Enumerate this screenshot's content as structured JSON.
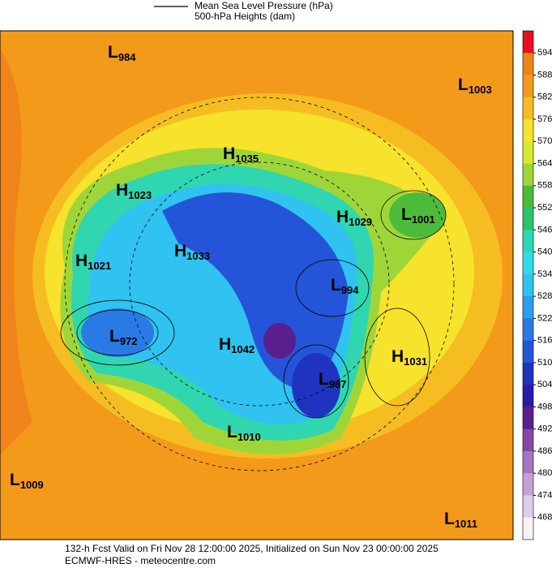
{
  "header": {
    "legend_line": "Mean Sea Level Pressure (hPa)",
    "legend_fill": "500-hPa Heights (dam)"
  },
  "colorbar": {
    "labels": [
      "594",
      "588",
      "582",
      "576",
      "570",
      "564",
      "558",
      "552",
      "546",
      "540",
      "534",
      "528",
      "522",
      "516",
      "510",
      "504",
      "498",
      "492",
      "486",
      "480",
      "474",
      "468"
    ],
    "colors": [
      "#e8101c",
      "#f0841a",
      "#f39a1a",
      "#f6bd22",
      "#f7e22c",
      "#d8ea2e",
      "#9ed63a",
      "#4dbb3a",
      "#2bc46a",
      "#2fd6b0",
      "#30dce6",
      "#30c2f0",
      "#2c9ef0",
      "#2a7ae6",
      "#2455d8",
      "#1f33c0",
      "#2a1aa8",
      "#5b1e8e",
      "#8548a8",
      "#a676c0",
      "#c2a2d6",
      "#ddccea",
      "#f6f2fa"
    ]
  },
  "centers": [
    {
      "type": "L",
      "value": "984"
    },
    {
      "type": "L",
      "value": "1003"
    },
    {
      "type": "H",
      "value": "1035"
    },
    {
      "type": "H",
      "value": "1023"
    },
    {
      "type": "H",
      "value": "1029"
    },
    {
      "type": "L",
      "value": "1001"
    },
    {
      "type": "H",
      "value": "1033"
    },
    {
      "type": "H",
      "value": "1021"
    },
    {
      "type": "L",
      "value": "994"
    },
    {
      "type": "L",
      "value": "972"
    },
    {
      "type": "H",
      "value": "1042"
    },
    {
      "type": "H",
      "value": "1031"
    },
    {
      "type": "L",
      "value": "987"
    },
    {
      "type": "L",
      "value": "1010"
    },
    {
      "type": "L",
      "value": "1009"
    },
    {
      "type": "L",
      "value": "1011"
    }
  ],
  "footer": {
    "line1": "132-h Fcst Valid on Fri Nov 28 12:00:00 2025, Initialized on Sun Nov 23 00:00:00 2025",
    "line2": "ECMWF-HRES - meteocentre.com"
  }
}
